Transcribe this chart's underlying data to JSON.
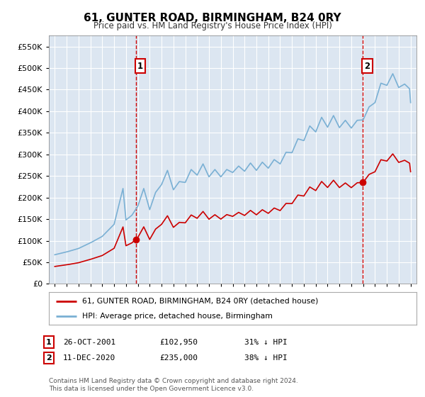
{
  "title": "61, GUNTER ROAD, BIRMINGHAM, B24 0RY",
  "subtitle": "Price paid vs. HM Land Registry's House Price Index (HPI)",
  "plot_bg_color": "#dce6f1",
  "hpi_color": "#7ab0d4",
  "price_color": "#cc0000",
  "dashed_line_color": "#cc0000",
  "ylim": [
    0,
    575000
  ],
  "yticks": [
    0,
    50000,
    100000,
    150000,
    200000,
    250000,
    300000,
    350000,
    400000,
    450000,
    500000,
    550000
  ],
  "transaction1_date": 2001.82,
  "transaction1_price": 102950,
  "transaction2_date": 2020.95,
  "transaction2_price": 235000,
  "legend_label_price": "61, GUNTER ROAD, BIRMINGHAM, B24 0RY (detached house)",
  "legend_label_hpi": "HPI: Average price, detached house, Birmingham",
  "note1_num": "1",
  "note1_date": "26-OCT-2001",
  "note1_price": "£102,950",
  "note1_pct": "31% ↓ HPI",
  "note2_num": "2",
  "note2_date": "11-DEC-2020",
  "note2_price": "£235,000",
  "note2_pct": "38% ↓ HPI",
  "footer": "Contains HM Land Registry data © Crown copyright and database right 2024.\nThis data is licensed under the Open Government Licence v3.0."
}
